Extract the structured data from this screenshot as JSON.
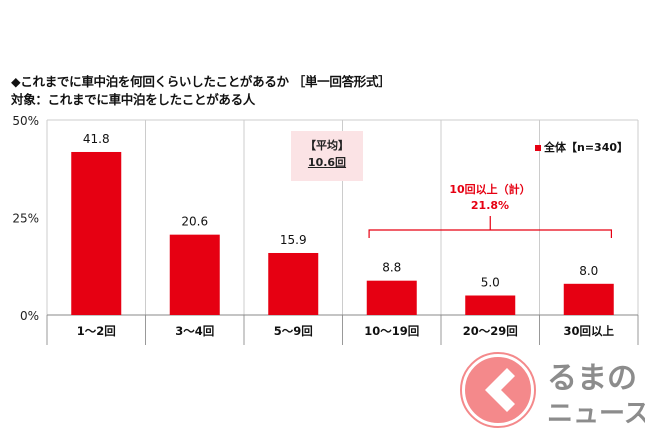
{
  "title_line1": "◆これまでに車中泊を何回くらいしたことがあるか ［単一回答形式］",
  "title_line2": "対象：これまでに車中泊をしたことがある人",
  "average": {
    "label": "【平均】",
    "value": "10.6回"
  },
  "legend": "全体【n=340】",
  "annotation": {
    "label": "10回以上（計）",
    "value": "21.8%"
  },
  "logo_text": [
    "くるまの",
    "ニュース"
  ],
  "colors": {
    "bar": "#e60012",
    "avg_bg": "#fbe3e5",
    "logo_red": "#f4898b",
    "logo_gray": "#8c8c8c"
  },
  "chart_data": {
    "type": "bar",
    "categories": [
      "1～2回",
      "3～4回",
      "5～9回",
      "10～19回",
      "20～29回",
      "30回以上"
    ],
    "values": [
      41.8,
      20.6,
      15.9,
      8.8,
      5.0,
      8.0
    ],
    "value_labels": [
      "41.8",
      "20.6",
      "15.9",
      "8.8",
      "5.0",
      "8.0"
    ],
    "yticks": [
      "0%",
      "25%",
      "50%"
    ],
    "ylim": [
      0,
      50
    ],
    "series_name": "全体【n=340】"
  }
}
